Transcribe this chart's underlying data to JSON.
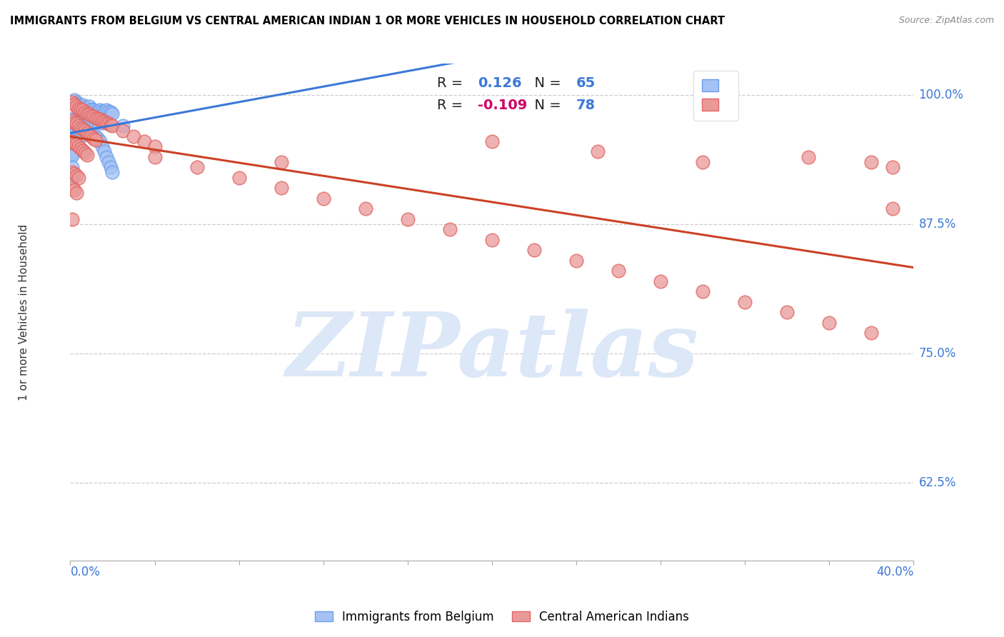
{
  "title": "IMMIGRANTS FROM BELGIUM VS CENTRAL AMERICAN INDIAN 1 OR MORE VEHICLES IN HOUSEHOLD CORRELATION CHART",
  "source": "Source: ZipAtlas.com",
  "ylabel_label": "1 or more Vehicles in Household",
  "legend1_label": "Immigrants from Belgium",
  "legend2_label": "Central American Indians",
  "R1": 0.126,
  "N1": 65,
  "R2": -0.109,
  "N2": 78,
  "blue_color": "#a4c2f4",
  "blue_edge_color": "#6d9eeb",
  "pink_color": "#ea9999",
  "pink_edge_color": "#e06666",
  "blue_line_color": "#3c78d8",
  "pink_line_color": "#cc4125",
  "blue_scatter_x": [
    0.002,
    0.003,
    0.004,
    0.005,
    0.006,
    0.007,
    0.008,
    0.009,
    0.01,
    0.011,
    0.012,
    0.013,
    0.014,
    0.015,
    0.016,
    0.017,
    0.018,
    0.019,
    0.02,
    0.002,
    0.003,
    0.004,
    0.005,
    0.006,
    0.007,
    0.008,
    0.009,
    0.01,
    0.011,
    0.012,
    0.013,
    0.015,
    0.002,
    0.003,
    0.004,
    0.005,
    0.006,
    0.007,
    0.008,
    0.009,
    0.003,
    0.004,
    0.001,
    0.001,
    0.001,
    0.001,
    0.001,
    0.001,
    0.001,
    0.001,
    0.001,
    0.001,
    0.001,
    0.012,
    0.013,
    0.001,
    0.014,
    0.015,
    0.001,
    0.016,
    0.017,
    0.018,
    0.019,
    0.02,
    0.025
  ],
  "blue_scatter_y": [
    0.995,
    0.993,
    0.991,
    0.989,
    0.99,
    0.988,
    0.987,
    0.989,
    0.986,
    0.985,
    0.984,
    0.983,
    0.985,
    0.984,
    0.983,
    0.985,
    0.984,
    0.983,
    0.982,
    0.978,
    0.977,
    0.976,
    0.975,
    0.974,
    0.976,
    0.974,
    0.975,
    0.974,
    0.973,
    0.972,
    0.974,
    0.973,
    0.967,
    0.965,
    0.964,
    0.963,
    0.965,
    0.963,
    0.962,
    0.963,
    0.96,
    0.958,
    0.956,
    0.955,
    0.953,
    0.952,
    0.95,
    0.949,
    0.947,
    0.946,
    0.944,
    0.943,
    0.941,
    0.96,
    0.958,
    0.93,
    0.955,
    0.95,
    0.92,
    0.945,
    0.94,
    0.935,
    0.93,
    0.925,
    0.97
  ],
  "pink_scatter_x": [
    0.001,
    0.002,
    0.003,
    0.004,
    0.005,
    0.006,
    0.007,
    0.008,
    0.009,
    0.01,
    0.011,
    0.012,
    0.013,
    0.014,
    0.015,
    0.016,
    0.017,
    0.018,
    0.019,
    0.02,
    0.025,
    0.03,
    0.035,
    0.04,
    0.001,
    0.002,
    0.003,
    0.004,
    0.005,
    0.006,
    0.007,
    0.008,
    0.009,
    0.01,
    0.011,
    0.012,
    0.001,
    0.002,
    0.003,
    0.004,
    0.005,
    0.006,
    0.007,
    0.008,
    0.001,
    0.002,
    0.003,
    0.004,
    0.001,
    0.002,
    0.003,
    0.04,
    0.06,
    0.08,
    0.1,
    0.12,
    0.14,
    0.16,
    0.18,
    0.2,
    0.22,
    0.24,
    0.26,
    0.28,
    0.3,
    0.32,
    0.34,
    0.36,
    0.38,
    0.001,
    0.1,
    0.2,
    0.25,
    0.3,
    0.35,
    0.38,
    0.39,
    0.39
  ],
  "pink_scatter_y": [
    0.993,
    0.991,
    0.989,
    0.987,
    0.986,
    0.985,
    0.983,
    0.982,
    0.981,
    0.98,
    0.979,
    0.978,
    0.977,
    0.976,
    0.975,
    0.974,
    0.973,
    0.972,
    0.971,
    0.97,
    0.965,
    0.96,
    0.955,
    0.95,
    0.975,
    0.973,
    0.972,
    0.97,
    0.968,
    0.967,
    0.965,
    0.963,
    0.961,
    0.96,
    0.958,
    0.956,
    0.955,
    0.953,
    0.952,
    0.95,
    0.948,
    0.946,
    0.944,
    0.942,
    0.925,
    0.924,
    0.922,
    0.92,
    0.91,
    0.908,
    0.905,
    0.94,
    0.93,
    0.92,
    0.91,
    0.9,
    0.89,
    0.88,
    0.87,
    0.86,
    0.85,
    0.84,
    0.83,
    0.82,
    0.81,
    0.8,
    0.79,
    0.78,
    0.77,
    0.88,
    0.935,
    0.955,
    0.945,
    0.935,
    0.94,
    0.935,
    0.93,
    0.89
  ],
  "xlim": [
    0.0,
    0.4
  ],
  "ylim": [
    0.55,
    1.03
  ],
  "y_ticks": [
    0.625,
    0.75,
    0.875,
    1.0
  ],
  "y_tick_labels": [
    "62.5%",
    "75.0%",
    "87.5%",
    "100.0%"
  ],
  "x_tick_labels": [
    "0.0%",
    "40.0%"
  ],
  "watermark_text": "ZIPatlas",
  "watermark_color": "#dce8f8",
  "bg_color": "#ffffff",
  "grid_color": "#cccccc",
  "axis_label_color": "#3c78d8",
  "fig_width": 14.06,
  "fig_height": 8.92,
  "dpi": 100
}
